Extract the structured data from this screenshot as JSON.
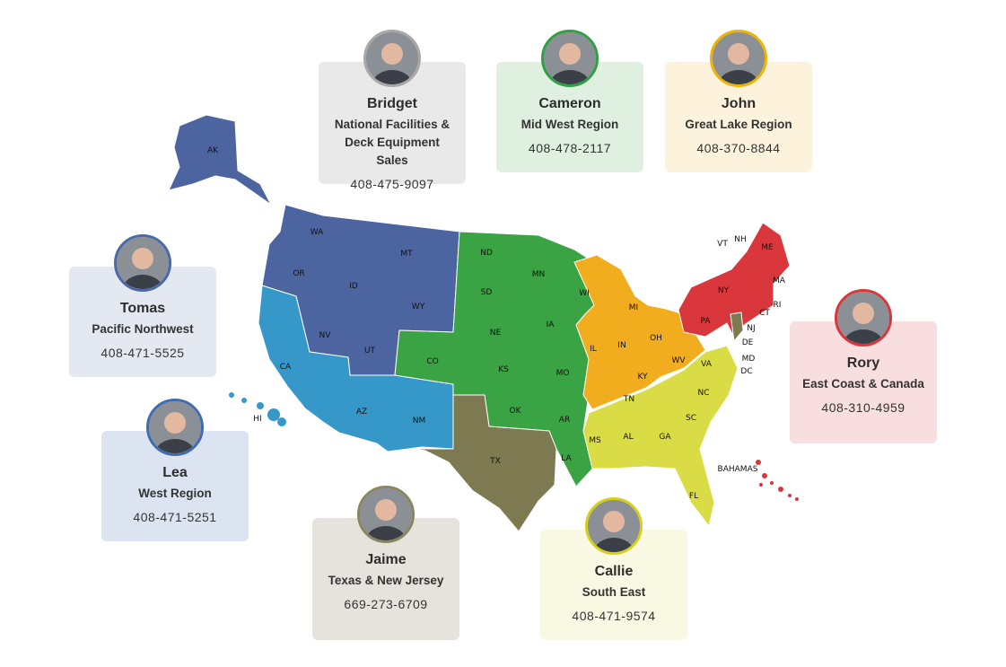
{
  "colors": {
    "alaska_pacific_northwest": "#4c64a0",
    "west": "#3598c9",
    "mid_west": "#3aa343",
    "texas": "#7d7a52",
    "great_lake": "#f2ad1f",
    "south_east": "#d9dc45",
    "east_coast": "#d9373c"
  },
  "contacts": [
    {
      "name": "Bridget",
      "region": "National Facilities & Deck Equipment Sales",
      "phone": "408-475-9097",
      "card_color": "#e9e9e9",
      "border_color": "#a8a8a8"
    },
    {
      "name": "Cameron",
      "region": "Mid West Region",
      "phone": "408-478-2117",
      "card_color": "#dff0e0",
      "border_color": "#2ea043"
    },
    {
      "name": "John",
      "region": "Great Lake Region",
      "phone": "408-370-8844",
      "card_color": "#fdf3dd",
      "border_color": "#f0b400"
    },
    {
      "name": "Tomas",
      "region": "Pacific Northwest",
      "phone": "408-471-5525",
      "card_color": "#e4e8f0",
      "border_color": "#4a69a8"
    },
    {
      "name": "Lea",
      "region": "West Region",
      "phone": "408-471-5251",
      "card_color": "#dbe4f0",
      "border_color": "#3f6cb3"
    },
    {
      "name": "Jaime",
      "region": "Texas & New Jersey",
      "phone": "669-273-6709",
      "card_color": "#e6e3dd",
      "border_color": "#8a8560"
    },
    {
      "name": "Callie",
      "region": "South East",
      "phone": "408-471-9574",
      "card_color": "#f9f9e3",
      "border_color": "#d6cf1a"
    },
    {
      "name": "Rory",
      "region": "East Coast & Canada",
      "phone": "408-310-4959",
      "card_color": "#f8dede",
      "border_color": "#d9373c"
    }
  ],
  "state_labels": [
    "AK",
    "WA",
    "OR",
    "MT",
    "ID",
    "WY",
    "NV",
    "UT",
    "CA",
    "AZ",
    "NM",
    "HI",
    "CO",
    "ND",
    "SD",
    "NE",
    "KS",
    "OK",
    "TX",
    "MN",
    "IA",
    "MO",
    "AR",
    "LA",
    "WI",
    "MI",
    "IL",
    "IN",
    "OH",
    "KY",
    "TN",
    "WV",
    "VA",
    "NC",
    "SC",
    "GA",
    "AL",
    "MS",
    "FL",
    "PA",
    "NY",
    "VT",
    "NH",
    "ME",
    "MA",
    "RI",
    "CT",
    "NJ",
    "DE",
    "MD",
    "DC",
    "BAHAMAS"
  ]
}
